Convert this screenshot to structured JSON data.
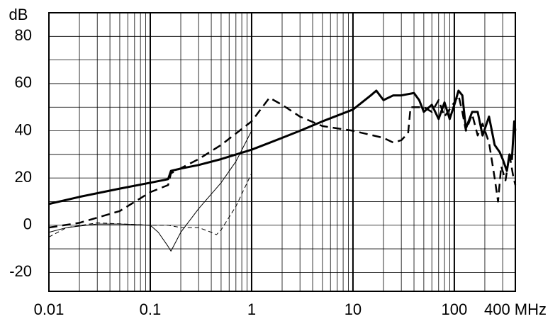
{
  "chart_data": {
    "type": "line",
    "y_label": "dB",
    "xscale": "log",
    "grid": true,
    "xlim": [
      0.01,
      400
    ],
    "ylim": [
      -28,
      90
    ],
    "xticks": [
      0.01,
      0.1,
      1,
      10,
      100,
      {
        "value": 400,
        "label": "400 MHz"
      }
    ],
    "yticks": [
      -20,
      0,
      20,
      40,
      60,
      80
    ],
    "minor_yticks": [
      -10,
      10,
      30,
      50,
      70,
      90
    ],
    "series": [
      {
        "color": "#000000",
        "width": 3,
        "dash": "none",
        "x": [
          0.01,
          0.02,
          0.05,
          0.1,
          0.15,
          0.16,
          0.2,
          0.3,
          0.5,
          1,
          2,
          3,
          5,
          10,
          15,
          17,
          20,
          25,
          30,
          40,
          45,
          50,
          60,
          70,
          80,
          90,
          100,
          110,
          120,
          130,
          150,
          170,
          190,
          220,
          250,
          280,
          300,
          330,
          350,
          370,
          390,
          400
        ],
        "values": [
          9,
          12,
          15.5,
          18,
          19.5,
          23,
          24,
          25.5,
          28,
          32,
          37,
          40,
          44,
          49,
          55,
          57,
          53,
          55,
          55,
          56,
          53,
          48,
          51,
          45,
          52,
          45,
          51,
          57,
          55,
          41,
          48,
          48,
          38,
          46,
          34,
          31,
          28,
          23,
          30,
          28,
          44,
          40
        ]
      },
      {
        "color": "#000000",
        "width": 2.5,
        "dash": "12 7",
        "x": [
          0.01,
          0.02,
          0.05,
          0.1,
          0.15,
          0.16,
          0.3,
          0.5,
          1,
          1.5,
          2,
          3,
          5,
          10,
          20,
          25,
          30,
          35,
          37,
          50,
          60,
          70,
          80,
          100,
          110,
          120,
          130,
          150,
          170,
          190,
          220,
          250,
          270,
          290,
          320,
          350,
          380,
          400
        ],
        "values": [
          -1,
          1,
          6,
          14,
          17,
          22,
          28,
          34,
          44,
          54,
          51,
          46,
          42,
          40,
          37,
          35,
          36,
          39,
          50,
          50,
          48,
          53,
          46,
          52,
          55,
          48,
          40,
          47,
          38,
          43,
          35,
          20,
          10,
          25,
          19,
          30,
          21,
          17
        ]
      },
      {
        "color": "#000000",
        "width": 1,
        "dash": "none",
        "x": [
          0.01,
          0.015,
          0.03,
          0.05,
          0.1,
          0.12,
          0.15,
          0.16,
          0.2,
          0.3,
          0.5,
          0.7,
          1
        ],
        "values": [
          -3,
          -1,
          0.5,
          0.5,
          0,
          -3,
          -9,
          -11,
          -3,
          7,
          18,
          27,
          40
        ]
      },
      {
        "color": "#000000",
        "width": 1,
        "dash": "6 4",
        "x": [
          0.01,
          0.015,
          0.03,
          0.1,
          0.15,
          0.2,
          0.3,
          0.4,
          0.45,
          0.5,
          0.7,
          1
        ],
        "values": [
          -5,
          -1,
          1,
          0,
          0,
          -1,
          -1,
          -3,
          -4,
          -2,
          8,
          22
        ]
      }
    ]
  }
}
